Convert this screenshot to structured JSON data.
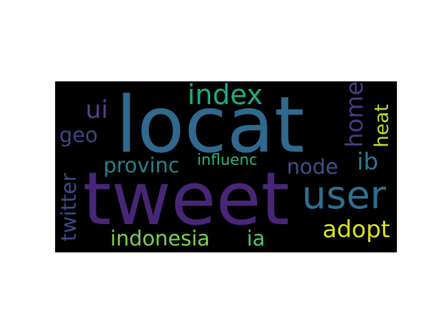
{
  "wordcloud": {
    "words": [
      {
        "text": "locat",
        "color": "#31688e"
      },
      {
        "text": "tweet",
        "color": "#482677"
      },
      {
        "text": "user",
        "color": "#2d708e"
      },
      {
        "text": "index",
        "color": "#22a884"
      },
      {
        "text": "ui",
        "color": "#5c3b8f"
      },
      {
        "text": "home",
        "color": "#433e85"
      },
      {
        "text": "heat",
        "color": "#bddf26"
      },
      {
        "text": "ib",
        "color": "#2a788e"
      },
      {
        "text": "geo",
        "color": "#414487"
      },
      {
        "text": "provinc",
        "color": "#26828e"
      },
      {
        "text": "influenc",
        "color": "#2db27d"
      },
      {
        "text": "node",
        "color": "#3b528b"
      },
      {
        "text": "twitter",
        "color": "#3e4a89"
      },
      {
        "text": "adopt",
        "color": "#dde318"
      },
      {
        "text": "indonesia",
        "color": "#7ad151"
      },
      {
        "text": "ia",
        "color": "#52c569"
      }
    ]
  }
}
